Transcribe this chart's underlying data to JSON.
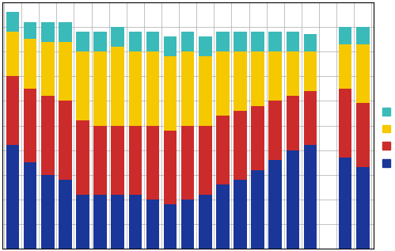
{
  "blue_vals": [
    42,
    35,
    30,
    28,
    22,
    22,
    22,
    22,
    20,
    18,
    20,
    22,
    26,
    28,
    32,
    36,
    40,
    42,
    0,
    37,
    33
  ],
  "red_vals": [
    28,
    30,
    32,
    32,
    30,
    28,
    28,
    28,
    30,
    30,
    30,
    28,
    28,
    28,
    26,
    24,
    22,
    22,
    0,
    28,
    26
  ],
  "yellow_vals": [
    18,
    20,
    22,
    24,
    28,
    30,
    32,
    30,
    30,
    30,
    30,
    28,
    26,
    24,
    22,
    20,
    18,
    16,
    0,
    18,
    24
  ],
  "teal_vals": [
    8,
    7,
    8,
    8,
    8,
    8,
    8,
    8,
    8,
    8,
    8,
    8,
    8,
    8,
    8,
    8,
    8,
    7,
    0,
    7,
    7
  ],
  "bar_colors": {
    "blue": "#1a3699",
    "red": "#cc2b2b",
    "yellow": "#f5c800",
    "teal": "#3bbaba"
  },
  "legend_colors": [
    "#3bbaba",
    "#f5c800",
    "#cc2b2b",
    "#1a3699"
  ],
  "ylim": [
    0,
    100
  ],
  "background_color": "#ffffff",
  "grid_color": "#aaaaaa",
  "n_bars": 21
}
